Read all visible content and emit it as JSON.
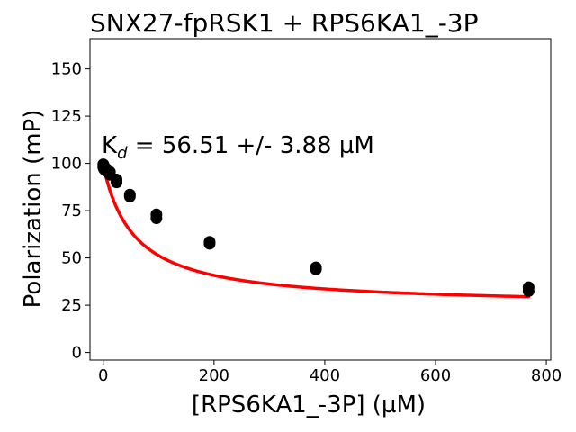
{
  "chart_data": {
    "type": "scatter",
    "title": "SNX27-fpRSK1 + RPS6KA1_-3P",
    "xlabel": "[RPS6KA1_-3P] (µM)",
    "ylabel": "Polarization (mP)",
    "xlim": [
      -24,
      808
    ],
    "ylim": [
      -4,
      166
    ],
    "xticks": [
      0,
      200,
      400,
      600,
      800
    ],
    "xtick_labels": [
      "0",
      "200",
      "400",
      "600",
      "800"
    ],
    "yticks": [
      0,
      25,
      50,
      75,
      100,
      125,
      150
    ],
    "ytick_labels": [
      "0",
      "25",
      "50",
      "75",
      "100",
      "125",
      "150"
    ],
    "grid": false,
    "annotation": {
      "prefix": "K",
      "subscript": "d",
      "text": " = 56.51 +/- 3.88 µM"
    },
    "series": [
      {
        "kind": "points",
        "color": "#000000",
        "points": [
          {
            "x": 0.0,
            "y": 99.5
          },
          {
            "x": 0.0,
            "y": 98.0
          },
          {
            "x": 0.75,
            "y": 99.0
          },
          {
            "x": 0.75,
            "y": 97.5
          },
          {
            "x": 1.5,
            "y": 98.0
          },
          {
            "x": 1.5,
            "y": 97.0
          },
          {
            "x": 3.0,
            "y": 97.5
          },
          {
            "x": 3.0,
            "y": 96.5
          },
          {
            "x": 6.0,
            "y": 97.0
          },
          {
            "x": 6.0,
            "y": 96.0
          },
          {
            "x": 12.0,
            "y": 95.5
          },
          {
            "x": 12.0,
            "y": 94.0
          },
          {
            "x": 24.0,
            "y": 91.5
          },
          {
            "x": 24.0,
            "y": 90.0
          },
          {
            "x": 48.0,
            "y": 83.5
          },
          {
            "x": 48.0,
            "y": 82.5
          },
          {
            "x": 96.0,
            "y": 73.0
          },
          {
            "x": 96.0,
            "y": 71.0
          },
          {
            "x": 192.0,
            "y": 58.5
          },
          {
            "x": 192.0,
            "y": 57.5
          },
          {
            "x": 384.0,
            "y": 45.0
          },
          {
            "x": 384.0,
            "y": 44.0
          },
          {
            "x": 768.0,
            "y": 34.5
          },
          {
            "x": 768.0,
            "y": 32.5
          }
        ]
      },
      {
        "kind": "fit",
        "color": "#ff0000",
        "model": {
          "top": 98.8,
          "bottom": 24.4,
          "kd": 56.51,
          "x_start": 0,
          "x_end": 768
        }
      }
    ]
  }
}
